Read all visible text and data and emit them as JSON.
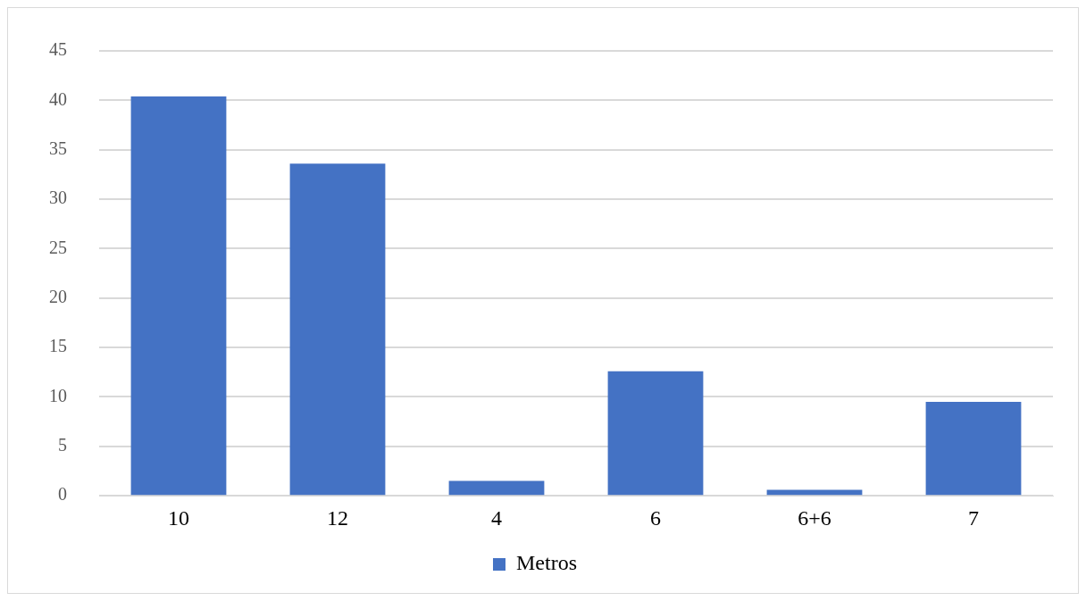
{
  "chart_data": {
    "type": "bar",
    "categories": [
      "10",
      "12",
      "4",
      "6",
      "6+6",
      "7"
    ],
    "series": [
      {
        "name": "Metros",
        "color": "#4472c4",
        "values": [
          40.4,
          33.6,
          1.5,
          12.6,
          0.6,
          9.5
        ]
      }
    ],
    "ylim": [
      0,
      45
    ],
    "yticks": [
      0,
      5,
      10,
      15,
      20,
      25,
      30,
      35,
      40,
      45
    ],
    "grid": "y",
    "legend": "bottom"
  }
}
